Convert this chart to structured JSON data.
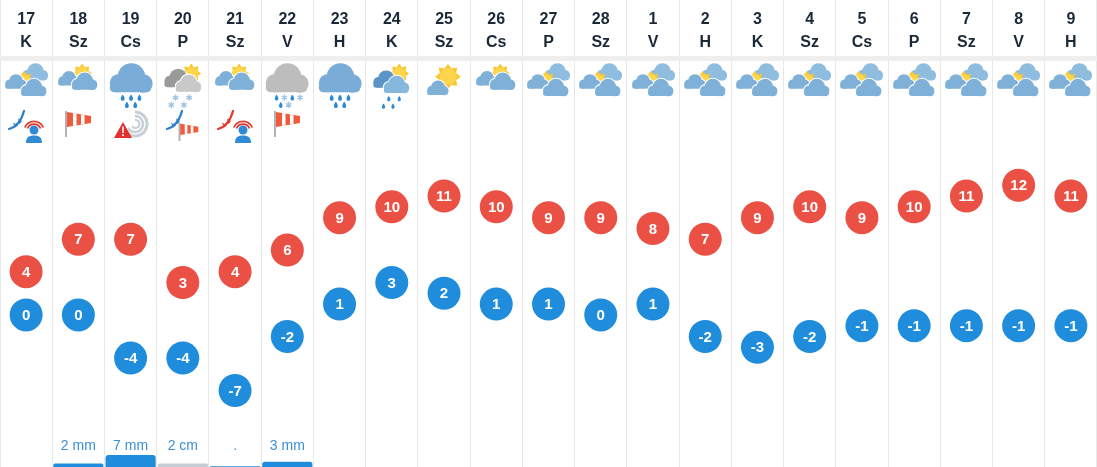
{
  "chart_data": [
    {
      "type": "scatter",
      "categories": [
        "17 K",
        "18 Sz",
        "19 Cs",
        "20 P",
        "21 Sz",
        "22 V",
        "23 H",
        "24 K",
        "25 Sz",
        "26 Cs",
        "27 P",
        "28 Sz",
        "1 V",
        "2 H",
        "3 K",
        "4 Sz",
        "5 Cs",
        "6 P",
        "7 Sz",
        "8 V",
        "9 H"
      ],
      "series": [
        {
          "color": "#ea5044",
          "values": [
            4,
            7,
            7,
            3,
            4,
            6,
            9,
            10,
            11,
            10,
            9,
            9,
            8,
            7,
            9,
            10,
            9,
            10,
            11,
            12,
            11
          ]
        },
        {
          "color": "#1f8ddb",
          "values": [
            0,
            0,
            -4,
            -4,
            -7,
            -2,
            1,
            3,
            2,
            1,
            1,
            0,
            1,
            -2,
            -3,
            -2,
            -1,
            -1,
            -1,
            -1,
            -1
          ]
        }
      ],
      "marker": "circle",
      "data_labels": true,
      "grid": "x",
      "tick_labels": "x"
    },
    {
      "type": "bar",
      "categories": [
        null,
        null,
        null,
        null,
        null,
        null,
        null,
        null,
        null,
        null,
        null,
        null,
        null,
        null,
        null,
        null,
        null,
        null,
        null,
        null,
        null
      ],
      "values": [
        null,
        2,
        7,
        2,
        0.5,
        3,
        null,
        null,
        null,
        null,
        null,
        null,
        null,
        null,
        null,
        null,
        null,
        null,
        null,
        null,
        null
      ],
      "colors": [
        null,
        "#1f8ddb",
        "#1f8ddb",
        "#c5cdd2",
        "#1f8ddb",
        "#1f8ddb",
        null,
        null,
        null,
        null,
        null,
        null,
        null,
        null,
        null,
        null,
        null,
        null,
        null,
        null,
        null
      ],
      "value_labels": [
        null,
        "2 mm",
        "7 mm",
        "2 cm",
        ".",
        "3 mm",
        null,
        null,
        null,
        null,
        null,
        null,
        null,
        null,
        null,
        null,
        null,
        null,
        null,
        null,
        null
      ],
      "grid": "x",
      "tick_labels": "x"
    }
  ]
}
